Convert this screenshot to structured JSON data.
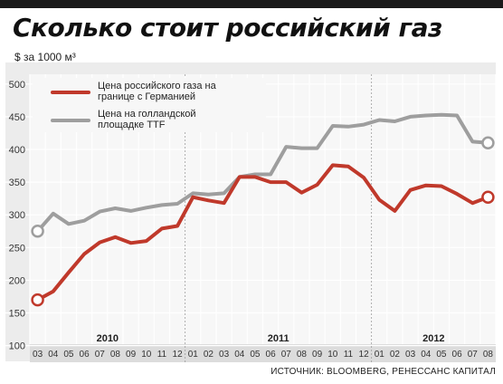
{
  "header": {
    "title": "Сколько стоит российский газ",
    "unit": "$ за 1000 м³"
  },
  "source": "ИСТОЧНИК: BLOOMBERG, РЕНЕССАНС КАПИТАЛ",
  "chart_data": {
    "type": "line",
    "x": [
      "03",
      "04",
      "05",
      "06",
      "07",
      "08",
      "09",
      "10",
      "11",
      "12",
      "01",
      "02",
      "03",
      "04",
      "05",
      "06",
      "07",
      "08",
      "09",
      "10",
      "11",
      "12",
      "01",
      "02",
      "03",
      "04",
      "05",
      "06",
      "07",
      "08"
    ],
    "year_labels": [
      "2010",
      "2011",
      "2012"
    ],
    "y_ticks": [
      100,
      150,
      200,
      250,
      300,
      350,
      400,
      450,
      500
    ],
    "ylim": [
      75,
      515
    ],
    "grid": true,
    "legend_position": "top-left",
    "series": [
      {
        "name": "Цена российского газа на границе с Германией",
        "color": "#c0392b",
        "values": [
          170,
          183,
          212,
          240,
          258,
          266,
          257,
          260,
          279,
          283,
          327,
          322,
          318,
          358,
          358,
          350,
          350,
          334,
          346,
          376,
          374,
          357,
          323,
          306,
          338,
          345,
          344,
          332,
          318,
          327
        ]
      },
      {
        "name": "Цена на голландской площадке TTF",
        "color": "#9e9e9e",
        "values": [
          275,
          302,
          286,
          291,
          305,
          310,
          306,
          311,
          315,
          317,
          333,
          331,
          333,
          358,
          362,
          362,
          404,
          402,
          402,
          436,
          435,
          438,
          445,
          443,
          450,
          452,
          453,
          452,
          412,
          410
        ]
      }
    ]
  }
}
